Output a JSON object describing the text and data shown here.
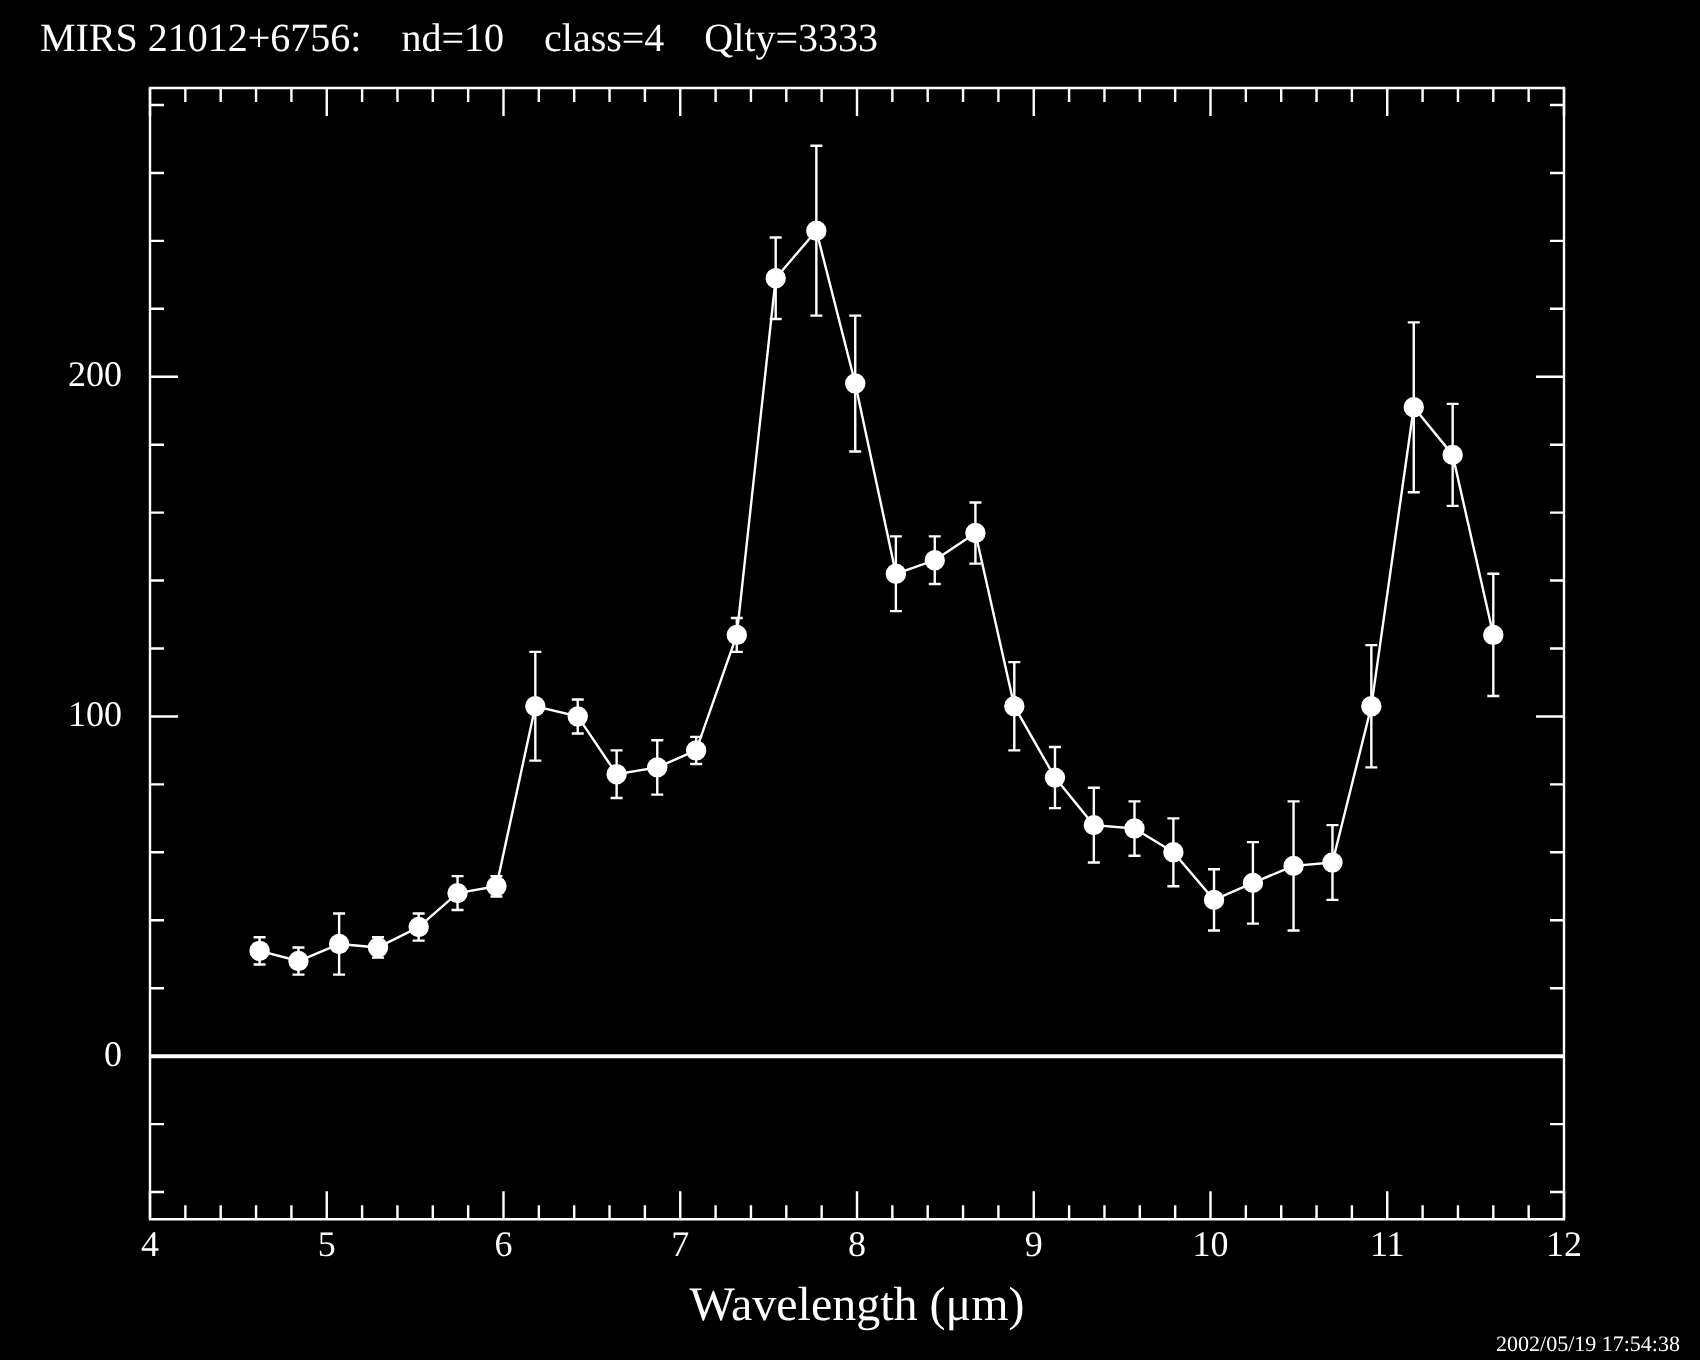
{
  "chart_data": {
    "type": "line",
    "title": "MIRS 21012+6756:    nd=10    class=4    Qlty=3333",
    "xlabel": "Wavelength (μm)",
    "x": [
      4.62,
      4.84,
      5.07,
      5.29,
      5.52,
      5.74,
      5.96,
      6.18,
      6.42,
      6.64,
      6.87,
      7.09,
      7.32,
      7.54,
      7.77,
      7.99,
      8.22,
      8.44,
      8.67,
      8.89,
      9.12,
      9.34,
      9.57,
      9.79,
      10.02,
      10.24,
      10.47,
      10.69,
      10.91,
      11.15,
      11.37,
      11.6
    ],
    "series": [
      {
        "color": "#ffffff",
        "values": [
          31,
          28,
          33,
          32,
          38,
          48,
          50,
          103,
          100,
          83,
          85,
          90,
          124,
          229,
          243,
          198,
          142,
          146,
          154,
          103,
          82,
          68,
          67,
          60,
          46,
          51,
          56,
          57,
          103,
          191,
          177,
          124
        ],
        "errors": [
          4,
          4,
          9,
          3,
          4,
          5,
          3,
          16,
          5,
          7,
          8,
          4,
          5,
          12,
          25,
          20,
          11,
          7,
          9,
          13,
          9,
          11,
          8,
          10,
          9,
          12,
          19,
          11,
          18,
          25,
          15,
          18
        ]
      }
    ],
    "xlim": [
      4,
      12
    ],
    "xticks": [
      4,
      {
        "value": 4.2,
        "label": null
      },
      {
        "value": 4.4,
        "label": null
      },
      {
        "value": 4.6,
        "label": null
      },
      {
        "value": 4.8,
        "label": null
      },
      5,
      {
        "value": 5.2,
        "label": null
      },
      {
        "value": 5.4,
        "label": null
      },
      {
        "value": 5.6,
        "label": null
      },
      {
        "value": 5.8,
        "label": null
      },
      6,
      {
        "value": 6.2,
        "label": null
      },
      {
        "value": 6.4,
        "label": null
      },
      {
        "value": 6.6,
        "label": null
      },
      {
        "value": 6.8,
        "label": null
      },
      7,
      {
        "value": 7.2,
        "label": null
      },
      {
        "value": 7.4,
        "label": null
      },
      {
        "value": 7.6,
        "label": null
      },
      {
        "value": 7.8,
        "label": null
      },
      8,
      {
        "value": 8.2,
        "label": null
      },
      {
        "value": 8.4,
        "label": null
      },
      {
        "value": 8.6,
        "label": null
      },
      {
        "value": 8.8,
        "label": null
      },
      9,
      {
        "value": 9.2,
        "label": null
      },
      {
        "value": 9.4,
        "label": null
      },
      {
        "value": 9.6,
        "label": null
      },
      {
        "value": 9.8,
        "label": null
      },
      10,
      {
        "value": 10.2,
        "label": null
      },
      {
        "value": 10.4,
        "label": null
      },
      {
        "value": 10.6,
        "label": null
      },
      {
        "value": 10.8,
        "label": null
      },
      11,
      {
        "value": 11.2,
        "label": null
      },
      {
        "value": 11.4,
        "label": null
      },
      {
        "value": 11.6,
        "label": null
      },
      {
        "value": 11.8,
        "label": null
      },
      12
    ],
    "ylim": [
      -48,
      285
    ],
    "yticks": [
      {
        "value": -40,
        "label": null
      },
      {
        "value": -20,
        "label": null
      },
      0,
      {
        "value": 20,
        "label": null
      },
      {
        "value": 40,
        "label": null
      },
      {
        "value": 60,
        "label": null
      },
      {
        "value": 80,
        "label": null
      },
      100,
      {
        "value": 120,
        "label": null
      },
      {
        "value": 140,
        "label": null
      },
      {
        "value": 160,
        "label": null
      },
      {
        "value": 180,
        "label": null
      },
      200,
      {
        "value": 220,
        "label": null
      },
      {
        "value": 240,
        "label": null
      },
      {
        "value": 260,
        "label": null
      },
      {
        "value": 280,
        "label": null
      }
    ],
    "ref_lines": [
      {
        "axis": "y",
        "value": 0,
        "color": "#ffffff"
      }
    ],
    "marker": "circle",
    "line_style": "solid",
    "grid": false,
    "legend": false,
    "annotations": [
      "2002/05/19 17:54:38"
    ]
  }
}
